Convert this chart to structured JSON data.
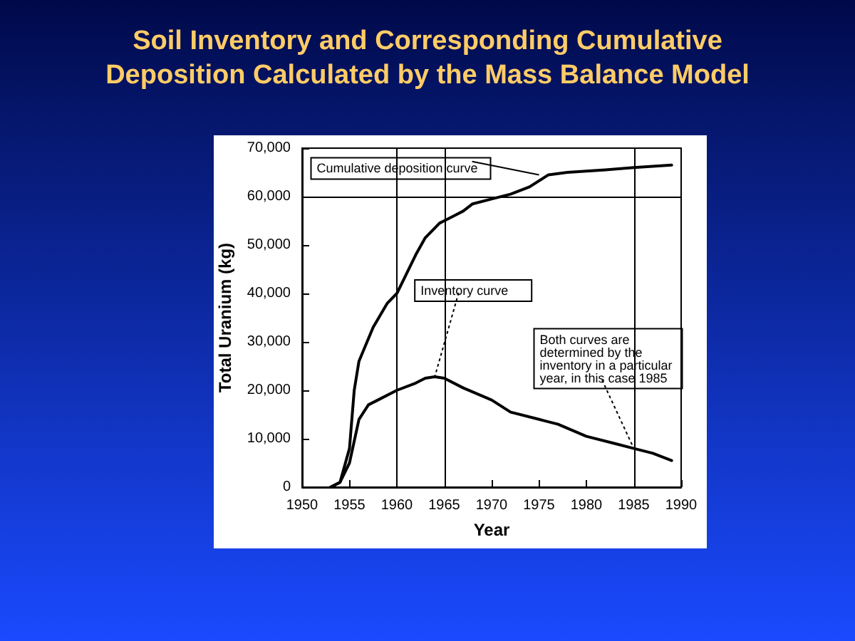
{
  "chart_data": {
    "type": "line",
    "title": "Soil Inventory and Corresponding Cumulative\nDeposition Calculated by the Mass Balance Model",
    "xlabel": "Year",
    "ylabel": "Total Uranium (kg)",
    "series": [
      {
        "color": "#000000",
        "x": [
          1953,
          1954,
          1955,
          1955.5,
          1956,
          1957.5,
          1959,
          1960,
          1961,
          1962,
          1963,
          1964.5,
          1965,
          1966,
          1967,
          1968,
          1970,
          1972,
          1974,
          1976,
          1978,
          1982,
          1985,
          1989
        ],
        "values": [
          0,
          1000,
          8000,
          20000,
          26000,
          33000,
          38000,
          40000,
          44000,
          48000,
          51500,
          54500,
          55000,
          56000,
          57000,
          58500,
          59500,
          60500,
          62000,
          64500,
          65000,
          65500,
          66000,
          66500
        ]
      },
      {
        "color": "#000000",
        "x": [
          1953,
          1954,
          1955,
          1956,
          1957,
          1958,
          1960,
          1962,
          1963,
          1964,
          1965,
          1967,
          1970,
          1972,
          1975,
          1977,
          1980,
          1983,
          1985,
          1987,
          1989
        ],
        "values": [
          0,
          1000,
          5000,
          14000,
          17000,
          18000,
          20000,
          21500,
          22500,
          22800,
          22500,
          20500,
          18000,
          15500,
          14000,
          13000,
          10500,
          9000,
          8000,
          7000,
          5500
        ]
      }
    ],
    "xlim": [
      1950,
      1990
    ],
    "xticks": [
      1950,
      1955,
      1960,
      1965,
      1970,
      1975,
      1980,
      1985,
      1990
    ],
    "ylim": [
      0,
      70000
    ],
    "yticks": [
      0,
      {
        "value": 10000,
        "label": "10,000"
      },
      {
        "value": 20000,
        "label": "20,000"
      },
      {
        "value": 30000,
        "label": "30,000"
      },
      {
        "value": 40000,
        "label": "40,000"
      },
      {
        "value": 50000,
        "label": "50,000"
      },
      {
        "value": 60000,
        "label": "60,000"
      },
      {
        "value": 70000,
        "label": "70,000"
      }
    ],
    "grid": false,
    "marker": "none",
    "line_style": "solid",
    "ref_lines": [
      {
        "axis": "x",
        "value": 1960,
        "color": "#000000"
      },
      {
        "axis": "x",
        "value": 1965,
        "color": "#000000"
      },
      {
        "axis": "x",
        "value": 1985,
        "color": "#000000"
      },
      {
        "axis": "y",
        "value": 60000,
        "color": "#000000"
      }
    ],
    "annotations": [
      {
        "text": "Cumulative deposition curve",
        "x": 1975,
        "y": 64500
      },
      {
        "text": "Inventory curve",
        "x": 1964,
        "y": 22800
      },
      {
        "text": "Both curves are determined by the inventory in a particular year, in this case 1985",
        "x": 1985,
        "y": 8000
      }
    ]
  }
}
